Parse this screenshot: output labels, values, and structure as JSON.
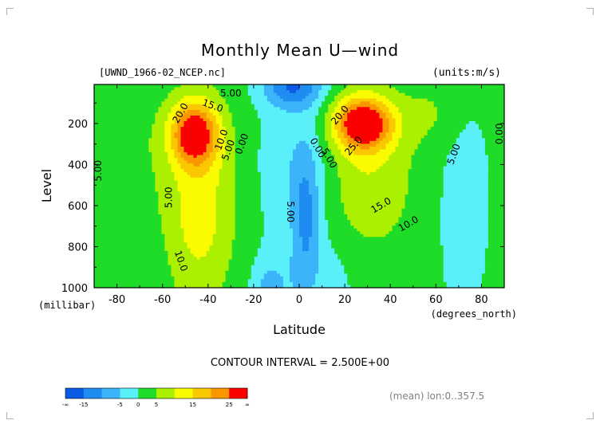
{
  "chart_data": {
    "type": "heatmap",
    "title": "Monthly Mean U—wind",
    "subtitle_left": "[UWND_1966-02_NCEP.nc]",
    "subtitle_right": "(units:m/s)",
    "xlabel": "Latitude",
    "ylabel": "Level",
    "x_units": "(degrees_north)",
    "y_units": "(millibar)",
    "xlim": [
      -90,
      90
    ],
    "ylim": [
      1000,
      10
    ],
    "x_ticks": [
      -80,
      -60,
      -40,
      -20,
      0,
      20,
      40,
      60,
      80
    ],
    "y_ticks": [
      200,
      400,
      600,
      800,
      1000
    ],
    "contour_interval_text": "CONTOUR INTERVAL = 2.500E+00",
    "footer_right": "(mean) lon:0..357.5",
    "color_levels": [
      {
        "lo": null,
        "hi": -15,
        "color": "#0a5ae6"
      },
      {
        "lo": -15,
        "hi": -10,
        "color": "#1e8cf0"
      },
      {
        "lo": -10,
        "hi": -5,
        "color": "#3cb4fa"
      },
      {
        "lo": -5,
        "hi": 0,
        "color": "#5af0fa"
      },
      {
        "lo": 0,
        "hi": 5,
        "color": "#1edc28"
      },
      {
        "lo": 5,
        "hi": 10,
        "color": "#aaf000"
      },
      {
        "lo": 10,
        "hi": 15,
        "color": "#fafa00"
      },
      {
        "lo": 15,
        "hi": 20,
        "color": "#fac800"
      },
      {
        "lo": 20,
        "hi": 25,
        "color": "#fa9600"
      },
      {
        "lo": 25,
        "hi": null,
        "color": "#fa0000"
      }
    ],
    "colorbar_labels": [
      "-∞",
      "-15",
      "-5",
      "0",
      "5",
      "15",
      "25",
      "∞"
    ],
    "contour_labels": [
      {
        "text": "5.00",
        "lat": -88,
        "p": 430,
        "rotate": -90
      },
      {
        "text": "5.00",
        "lat": -57,
        "p": 560,
        "rotate": -90
      },
      {
        "text": "10.0",
        "lat": -52,
        "p": 870,
        "rotate": 70
      },
      {
        "text": "20.0",
        "lat": -52,
        "p": 150,
        "rotate": -60
      },
      {
        "text": "15.0",
        "lat": -38,
        "p": 115,
        "rotate": 20
      },
      {
        "text": "10.0",
        "lat": -34,
        "p": 280,
        "rotate": -70
      },
      {
        "text": "5.00",
        "lat": -31,
        "p": 330,
        "rotate": -70
      },
      {
        "text": "0.00",
        "lat": -25,
        "p": 300,
        "rotate": -70
      },
      {
        "text": "5.00",
        "lat": -30,
        "p": 55,
        "rotate": 0
      },
      {
        "text": "5.00",
        "lat": -4,
        "p": 630,
        "rotate": 90
      },
      {
        "text": "0.00",
        "lat": 8,
        "p": 320,
        "rotate": 60
      },
      {
        "text": "5.00",
        "lat": 13,
        "p": 370,
        "rotate": 60
      },
      {
        "text": "20.0",
        "lat": 18,
        "p": 160,
        "rotate": -50
      },
      {
        "text": "25.0",
        "lat": 24,
        "p": 310,
        "rotate": -50
      },
      {
        "text": "15.0",
        "lat": 36,
        "p": 600,
        "rotate": -30
      },
      {
        "text": "10.0",
        "lat": 48,
        "p": 690,
        "rotate": -30
      },
      {
        "text": "5.00",
        "lat": 68,
        "p": 350,
        "rotate": -70
      },
      {
        "text": "0.00",
        "lat": 88,
        "p": 250,
        "rotate": -90
      }
    ]
  }
}
